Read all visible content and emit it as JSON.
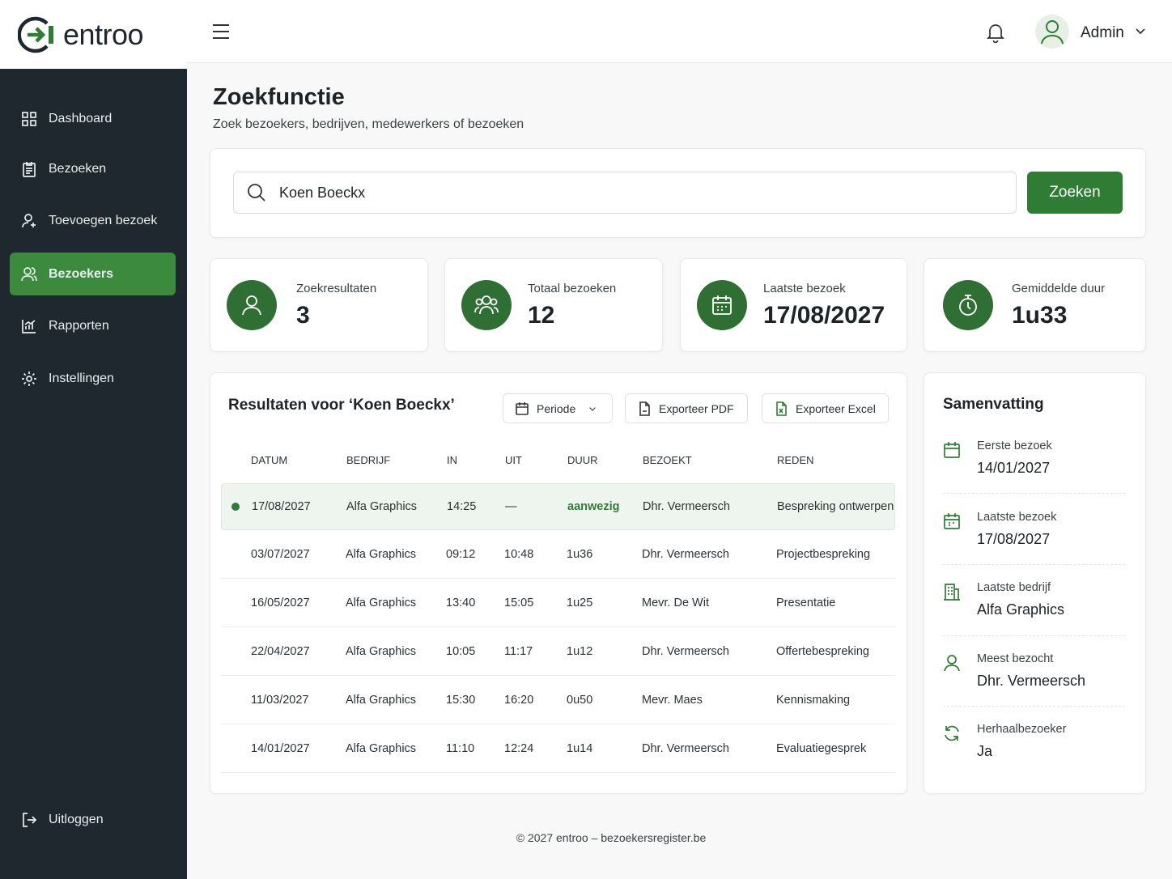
{
  "brand": "entroo",
  "nav": {
    "items": [
      "Dashboard",
      "Bezoeken",
      "Toevoegen bezoek",
      "Bezoekers",
      "Rapporten",
      "Instellingen"
    ],
    "logout": "Uitloggen"
  },
  "topbar": {
    "user": "Admin"
  },
  "header": {
    "title": "Zoekfunctie",
    "subtitle": "Zoek bezoekers, bedrijven, medewerkers of bezoeken"
  },
  "search": {
    "query": "Koen Boeckx",
    "button": "Zoeken"
  },
  "stats": [
    {
      "label": "Zoekresultaten",
      "value": 3
    },
    {
      "label": "Totaal bezoeken",
      "value": 12
    },
    {
      "label": "Laatste bezoek",
      "value": "17/08/2027"
    },
    {
      "label": "Gemiddelde duur",
      "value": "1u33"
    }
  ],
  "results": {
    "title": "Resultaten voor ‘Koen Boeckx’",
    "buttons": [
      "Periode",
      "Exporteer PDF",
      "Exporteer Excel"
    ],
    "table": {
      "headers": [
        "DATUM",
        "BEDRIJF",
        "IN",
        "UIT",
        "DUUR",
        "BEZOEKT",
        "REDEN"
      ],
      "rows": [
        [
          "17/08/2027",
          "Alfa Graphics",
          "14:25",
          "—",
          "aanwezig",
          "Dhr. Vermeersch",
          "Bespreking ontwerpen"
        ],
        [
          "03/07/2027",
          "Alfa Graphics",
          "09:12",
          "10:48",
          "1u36",
          "Dhr. Vermeersch",
          "Projectbespreking"
        ],
        [
          "16/05/2027",
          "Alfa Graphics",
          "13:40",
          "15:05",
          "1u25",
          "Mevr. De Wit",
          "Presentatie"
        ],
        [
          "22/04/2027",
          "Alfa Graphics",
          "10:05",
          "11:17",
          "1u12",
          "Dhr. Vermeersch",
          "Offertebespreking"
        ],
        [
          "11/03/2027",
          "Alfa Graphics",
          "15:30",
          "16:20",
          "0u50",
          "Mevr. Maes",
          "Kennismaking"
        ],
        [
          "14/01/2027",
          "Alfa Graphics",
          "11:10",
          "12:24",
          "1u14",
          "Dhr. Vermeersch",
          "Evaluatiegesprek"
        ]
      ]
    }
  },
  "summary": {
    "title": "Samenvatting",
    "items": [
      {
        "label": "Eerste bezoek",
        "value": "14/01/2027"
      },
      {
        "label": "Laatste bezoek",
        "value": "17/08/2027"
      },
      {
        "label": "Laatste bedrijf",
        "value": "Alfa Graphics"
      },
      {
        "label": "Meest bezocht",
        "value": "Dhr. Vermeersch"
      },
      {
        "label": "Herhaalbezoeker",
        "value": "Ja"
      }
    ]
  },
  "footer": "© 2027 entroo – bezoekersregister.be"
}
